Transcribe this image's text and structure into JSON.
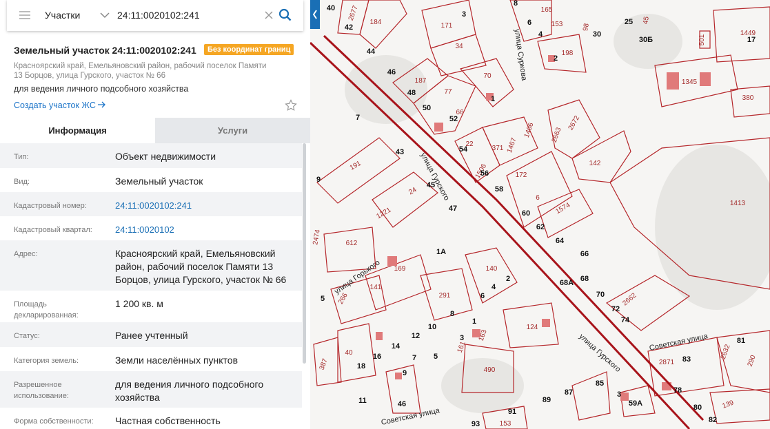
{
  "search": {
    "mode": "Участки",
    "query": "24:11:0020102:241"
  },
  "parcel": {
    "title": "Земельный участок 24:11:0020102:241",
    "badge": "Без координат границ",
    "address": "Красноярский край, Емельяновский район, рабочий поселок Памяти 13 Борцов, улица Гурского, участок № 66",
    "purpose": "для ведения личного подсобного хозяйства",
    "create_link": "Создать участок ЖС"
  },
  "tabs": [
    "Информация",
    "Услуги"
  ],
  "rows": [
    {
      "label": "Тип:",
      "value": "Объект недвижимости"
    },
    {
      "label": "Вид:",
      "value": "Земельный участок"
    },
    {
      "label": "Кадастровый номер:",
      "value": "24:11:0020102:241"
    },
    {
      "label": "Кадастровый квартал:",
      "value": "24:11:0020102"
    },
    {
      "label": "Адрес:",
      "value": "Красноярский край, Емельяновский район, рабочий поселок Памяти 13 Борцов, улица Гурского, участок № 66"
    },
    {
      "label": "Площадь декларированная:",
      "value": "1 200 кв. м"
    },
    {
      "label": "Статус:",
      "value": "Ранее учтенный"
    },
    {
      "label": "Категория земель:",
      "value": "Земли населённых пунктов"
    },
    {
      "label": "Разрешенное использование:",
      "value": "для ведения личного подсобного хозяйства"
    },
    {
      "label": "Форма собственности:",
      "value": "Частная собственность"
    }
  ],
  "map": {
    "streets": [
      "улица Гурского",
      "улица Суркова",
      "улица Горького",
      "улица Гурского",
      "Советская улица",
      "Советская улица"
    ],
    "labels": [
      "40",
      "2677",
      "42",
      "184",
      "44",
      "3",
      "171",
      "34",
      "8",
      "165",
      "6",
      "4",
      "153",
      "98",
      "30",
      "198",
      "2",
      "25",
      "45",
      "30Б",
      "501",
      "1449",
      "17",
      "1345",
      "380",
      "46",
      "187",
      "77",
      "70",
      "48",
      "1",
      "50",
      "66",
      "52",
      "7",
      "1406",
      "2672",
      "2663",
      "1467",
      "371",
      "54",
      "22",
      "43",
      "142",
      "1506",
      "56",
      "172",
      "191",
      "9",
      "58",
      "45",
      "24",
      "6",
      "1413",
      "1221",
      "47",
      "60",
      "1574",
      "62",
      "2474",
      "612",
      "64",
      "66",
      "1А",
      "169",
      "140",
      "2",
      "68А",
      "68",
      "141",
      "4",
      "70",
      "291",
      "6",
      "266",
      "5",
      "2662",
      "72",
      "8",
      "74",
      "10",
      "124",
      "1",
      "163",
      "12",
      "3",
      "40",
      "14",
      "161",
      "16",
      "18",
      "490",
      "387",
      "7",
      "5",
      "81",
      "2632",
      "290",
      "2871",
      "83",
      "78",
      "9",
      "85",
      "87",
      "89",
      "3",
      "59А",
      "80",
      "139",
      "82",
      "11",
      "46",
      "91",
      "93",
      "153"
    ]
  }
}
